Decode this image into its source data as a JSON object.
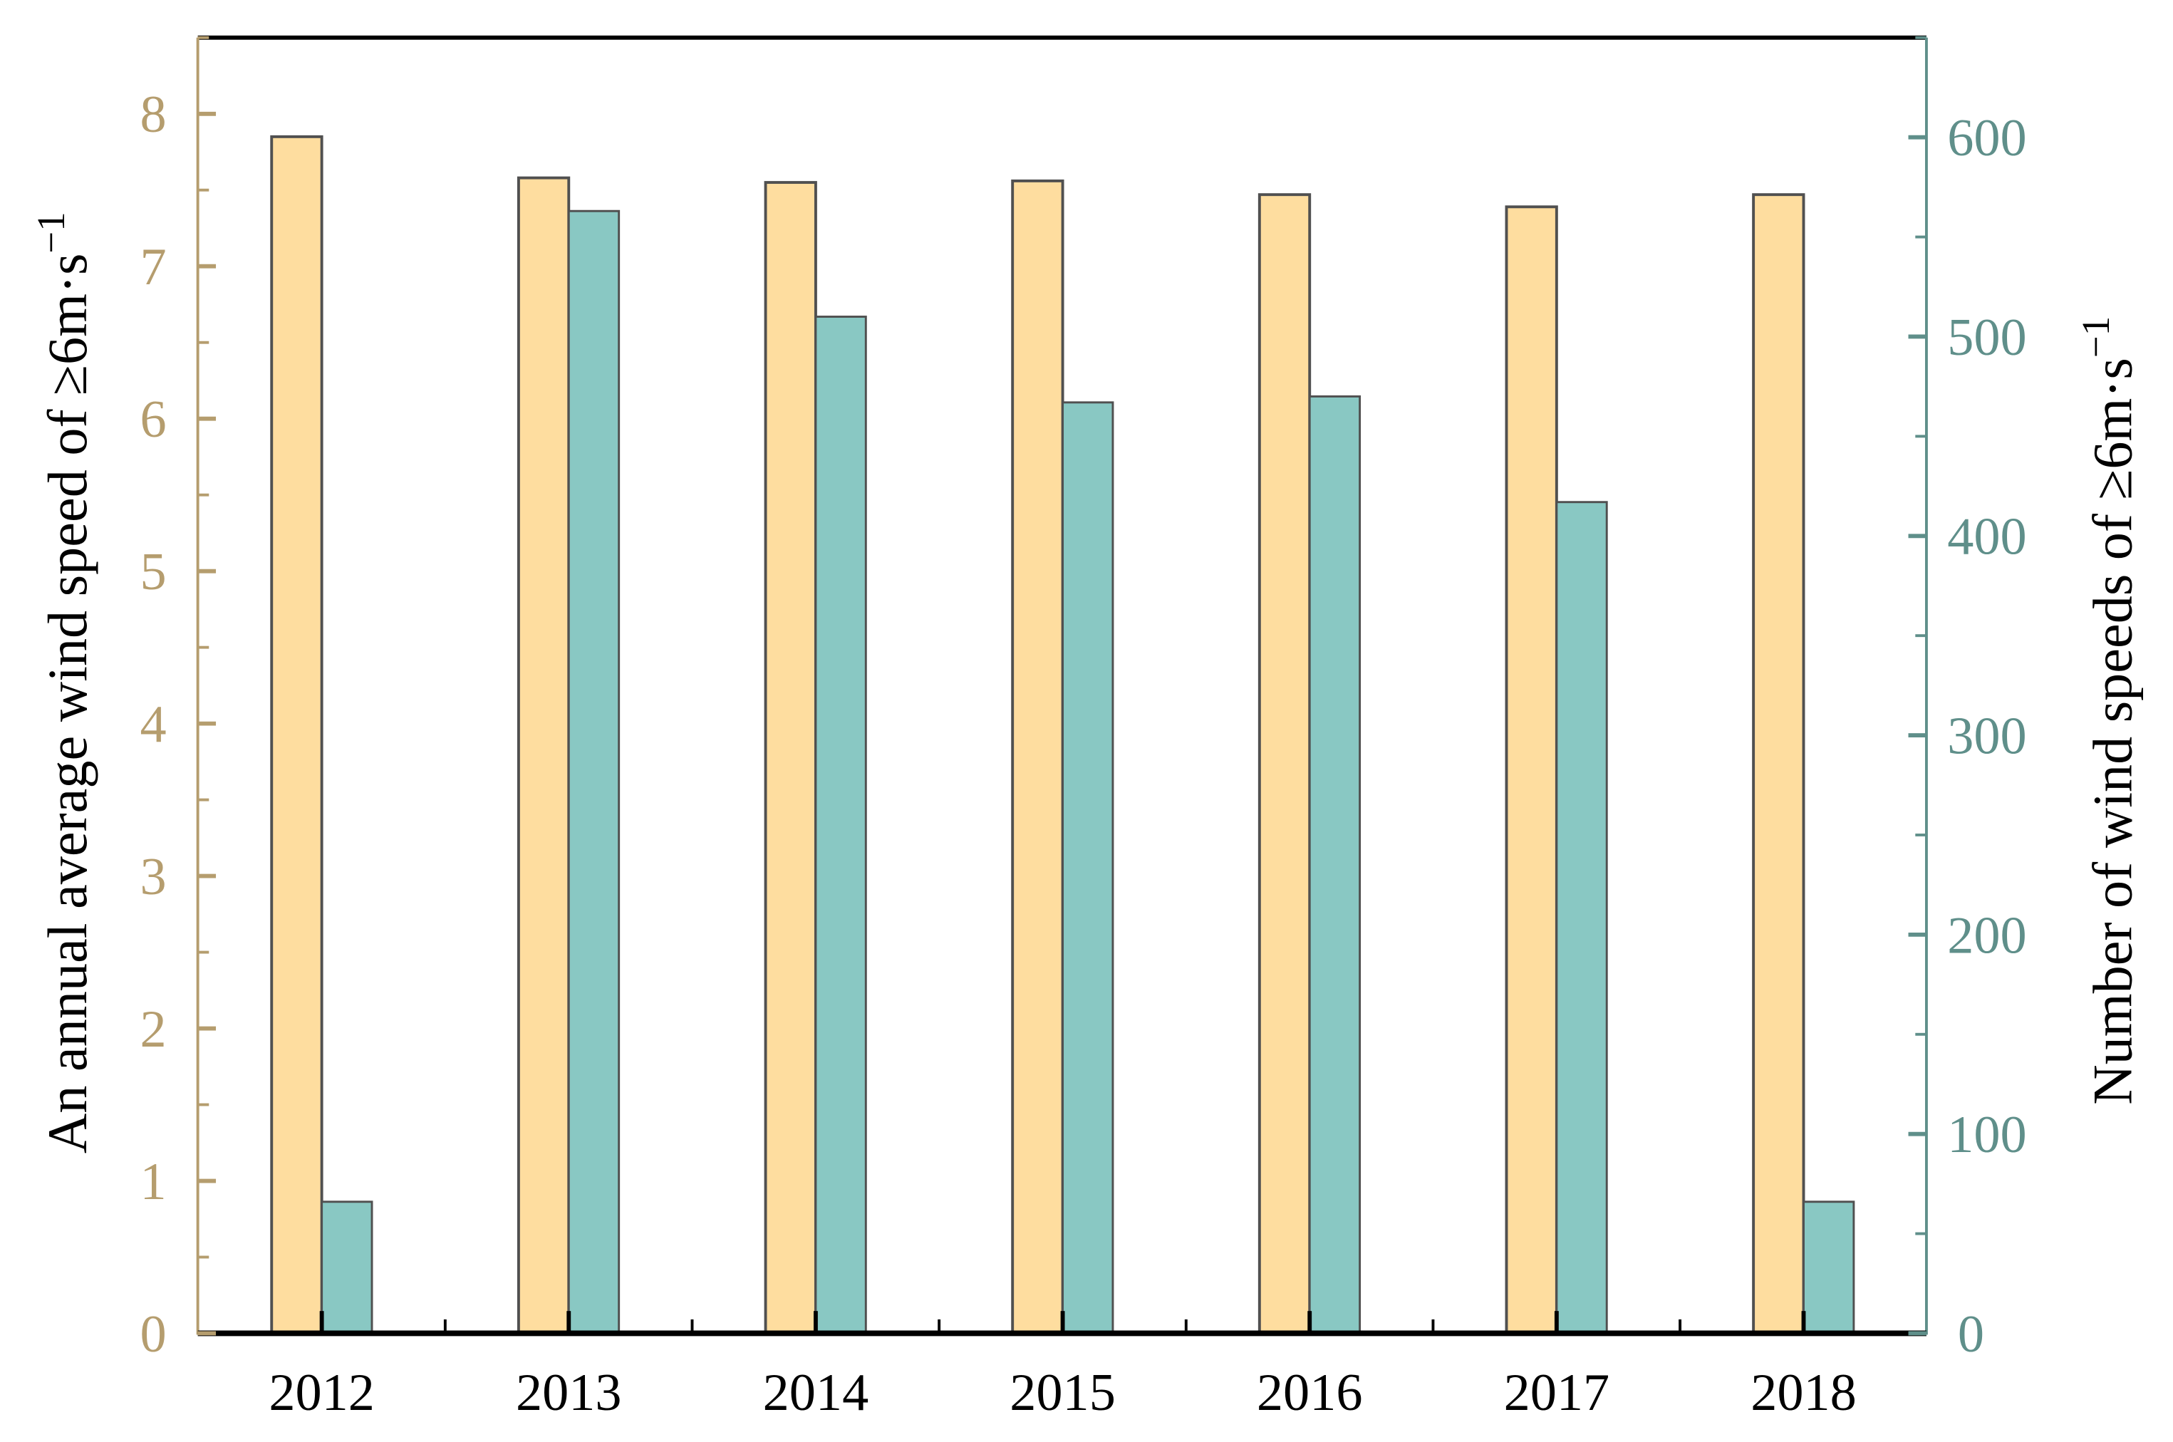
{
  "chart_data": {
    "type": "bar",
    "categories": [
      "2012",
      "2013",
      "2014",
      "2015",
      "2016",
      "2017",
      "2018"
    ],
    "series": [
      {
        "axis": "left",
        "color": "#fedd9f",
        "values": [
          7.85,
          7.58,
          7.55,
          7.56,
          7.47,
          7.39,
          7.47
        ]
      },
      {
        "axis": "right",
        "color": "#89c8c3",
        "values": [
          66,
          563,
          510,
          467,
          470,
          417,
          66
        ]
      }
    ],
    "ylabel_left": {
      "text": "An annual average wind speed of ≥6m·s",
      "sup": "−1"
    },
    "ylabel_right": {
      "text": "Number of wind speeds of ≥6m·s",
      "sup": "−1"
    },
    "ylim_left": [
      0,
      8.5
    ],
    "ylim_right": [
      0,
      650
    ],
    "yticks_left": [
      "0",
      "1",
      "2",
      "3",
      "4",
      "5",
      "6",
      "7",
      "8"
    ],
    "yticks_right": [
      "0",
      "100",
      "200",
      "300",
      "400",
      "500",
      "600"
    ],
    "left_axis_color": "#b59d6e",
    "right_axis_color": "#5f8f8a",
    "bar_edge_color": "#505050",
    "grid": false,
    "legend": "none"
  }
}
